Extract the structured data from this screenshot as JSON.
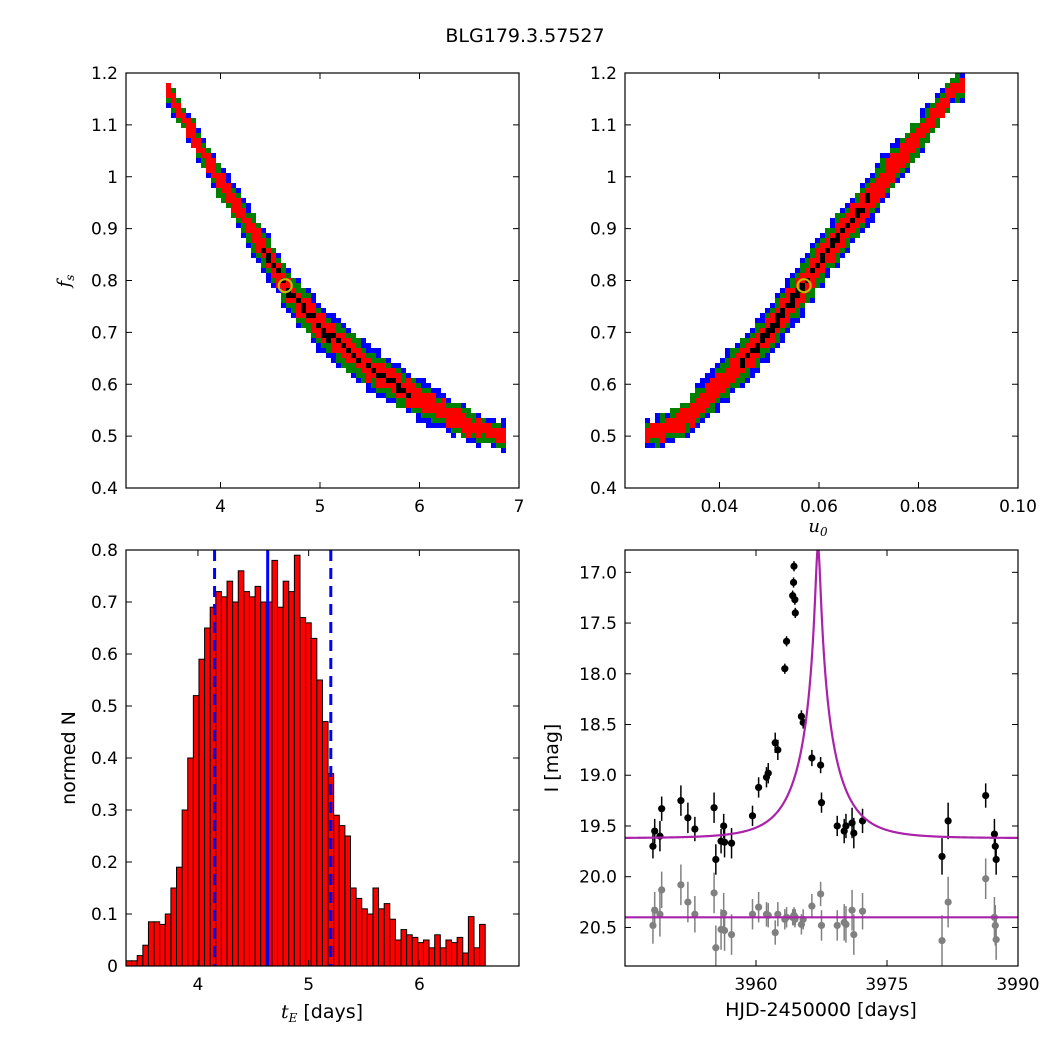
{
  "figure_title": "BLG179.3.57527",
  "chart_data": [
    {
      "type": "scatter",
      "subtype": "density-contour",
      "xlabel": "",
      "ylabel": "f_s",
      "xlim": [
        3.05,
        7.0
      ],
      "ylim": [
        0.4,
        1.2
      ],
      "xticks": [
        4,
        5,
        6,
        7
      ],
      "yticks": [
        0.4,
        0.5,
        0.6,
        0.7,
        0.8,
        0.9,
        1.0,
        1.1,
        1.2
      ],
      "levels": [
        {
          "name": "3-sigma",
          "color": "#0000ff"
        },
        {
          "name": "2-sigma",
          "color": "#008000"
        },
        {
          "name": "1-sigma",
          "color": "#ff0000"
        },
        {
          "name": "best",
          "color": "#000000"
        }
      ],
      "ridge": [
        [
          3.45,
          1.17
        ],
        [
          3.7,
          1.09
        ],
        [
          4.0,
          0.99
        ],
        [
          4.3,
          0.9
        ],
        [
          4.65,
          0.79
        ],
        [
          5.0,
          0.71
        ],
        [
          5.5,
          0.63
        ],
        [
          6.0,
          0.57
        ],
        [
          6.5,
          0.52
        ],
        [
          6.85,
          0.5
        ]
      ],
      "best_fit": {
        "x": 4.65,
        "y": 0.79,
        "color": "#bfbf00"
      }
    },
    {
      "type": "scatter",
      "subtype": "density-contour",
      "xlabel": "u_0",
      "ylabel": "",
      "xlim": [
        0.021,
        0.1
      ],
      "ylim": [
        0.4,
        1.2
      ],
      "xticks": [
        0.04,
        0.06,
        0.08,
        0.1
      ],
      "xtick_labels": [
        "0.04",
        "0.06",
        "0.08",
        "0.10"
      ],
      "yticks": [
        0.4,
        0.5,
        0.6,
        0.7,
        0.8,
        0.9,
        1.0,
        1.1,
        1.2
      ],
      "levels": [
        {
          "name": "3-sigma",
          "color": "#0000ff"
        },
        {
          "name": "2-sigma",
          "color": "#008000"
        },
        {
          "name": "1-sigma",
          "color": "#ff0000"
        },
        {
          "name": "best",
          "color": "#000000"
        }
      ],
      "ridge": [
        [
          0.027,
          0.505
        ],
        [
          0.033,
          0.53
        ],
        [
          0.04,
          0.6
        ],
        [
          0.045,
          0.65
        ],
        [
          0.05,
          0.7
        ],
        [
          0.056,
          0.78
        ],
        [
          0.062,
          0.86
        ],
        [
          0.068,
          0.93
        ],
        [
          0.075,
          1.02
        ],
        [
          0.082,
          1.1
        ],
        [
          0.087,
          1.17
        ]
      ],
      "best_fit": {
        "x": 0.057,
        "y": 0.79,
        "color": "#bfbf00"
      }
    },
    {
      "type": "bar",
      "subtype": "histogram",
      "xlabel": "t_E [days]",
      "ylabel": "normed N",
      "xlim": [
        3.35,
        6.9
      ],
      "ylim": [
        0.0,
        0.8
      ],
      "xticks": [
        4,
        5,
        6
      ],
      "yticks": [
        0.0,
        0.1,
        0.2,
        0.3,
        0.4,
        0.5,
        0.6,
        0.7,
        0.8
      ],
      "bin_start": 3.35,
      "bin_width": 0.0507,
      "values": [
        0.01,
        0.01,
        0.02,
        0.04,
        0.085,
        0.085,
        0.08,
        0.1,
        0.15,
        0.19,
        0.3,
        0.4,
        0.52,
        0.59,
        0.65,
        0.69,
        0.72,
        0.71,
        0.74,
        0.7,
        0.76,
        0.72,
        0.71,
        0.73,
        0.7,
        0.7,
        0.78,
        0.69,
        0.74,
        0.72,
        0.79,
        0.67,
        0.66,
        0.63,
        0.55,
        0.47,
        0.37,
        0.29,
        0.27,
        0.25,
        0.15,
        0.13,
        0.11,
        0.1,
        0.15,
        0.11,
        0.12,
        0.09,
        0.05,
        0.07,
        0.06,
        0.055,
        0.045,
        0.05,
        0.035,
        0.06,
        0.035,
        0.05,
        0.045,
        0.055,
        0.025,
        0.095,
        0.035,
        0.08
      ],
      "bar_color": "#ff0000",
      "vlines": [
        {
          "x": 4.63,
          "style": "solid",
          "color": "#0000ff"
        },
        {
          "x": 4.15,
          "style": "dashed",
          "color": "#0000ff"
        },
        {
          "x": 5.2,
          "style": "dashed",
          "color": "#0000ff"
        }
      ]
    },
    {
      "type": "scatter",
      "subtype": "light-curve",
      "xlabel": "HJD-2450000 [days]",
      "ylabel": "I [mag]",
      "xlim": [
        3945,
        3990
      ],
      "ylim": [
        20.88,
        16.78
      ],
      "y_inverted": true,
      "xticks": [
        3960,
        3975,
        3990
      ],
      "yticks": [
        17.0,
        17.5,
        18.0,
        18.5,
        19.0,
        19.5,
        20.0,
        20.5
      ],
      "ytick_labels": [
        "17.0",
        "17.5",
        "18.0",
        "18.5",
        "19.0",
        "19.5",
        "20.0",
        "20.5"
      ],
      "model": {
        "t0": 3967.1,
        "u0": 0.057,
        "tE": 4.65,
        "fs": 0.79,
        "I_base": 19.62,
        "color": "#aa22aa"
      },
      "baseline_model": {
        "I": 20.4,
        "color": "#aa22aa"
      },
      "series": [
        {
          "color": "#000000",
          "points": [
            [
              3948.2,
              19.7,
              0.12
            ],
            [
              3948.4,
              19.55,
              0.12
            ],
            [
              3949.0,
              19.6,
              0.15
            ],
            [
              3949.2,
              19.33,
              0.12
            ],
            [
              3951.4,
              19.25,
              0.15
            ],
            [
              3952.2,
              19.42,
              0.15
            ],
            [
              3953.0,
              19.53,
              0.12
            ],
            [
              3955.2,
              19.32,
              0.15
            ],
            [
              3955.4,
              19.83,
              0.15
            ],
            [
              3956.0,
              19.65,
              0.12
            ],
            [
              3956.3,
              19.5,
              0.12
            ],
            [
              3956.4,
              19.66,
              0.15
            ],
            [
              3957.2,
              19.67,
              0.15
            ],
            [
              3959.6,
              19.4,
              0.1
            ],
            [
              3960.3,
              19.12,
              0.1
            ],
            [
              3961.2,
              19.02,
              0.1
            ],
            [
              3961.4,
              18.98,
              0.1
            ],
            [
              3962.2,
              18.68,
              0.1
            ],
            [
              3962.5,
              18.75,
              0.1
            ],
            [
              3963.3,
              17.95,
              0.05
            ],
            [
              3963.5,
              17.68,
              0.05
            ],
            [
              3964.2,
              17.23,
              0.05
            ],
            [
              3964.3,
              17.1,
              0.05
            ],
            [
              3964.35,
              16.94,
              0.05
            ],
            [
              3964.45,
              17.27,
              0.05
            ],
            [
              3964.5,
              17.4,
              0.05
            ],
            [
              3965.2,
              18.42,
              0.06
            ],
            [
              3965.4,
              18.48,
              0.06
            ],
            [
              3966.4,
              18.83,
              0.08
            ],
            [
              3967.4,
              18.9,
              0.08
            ],
            [
              3967.5,
              19.27,
              0.1
            ],
            [
              3969.3,
              19.5,
              0.1
            ],
            [
              3970.1,
              19.55,
              0.12
            ],
            [
              3970.3,
              19.5,
              0.12
            ],
            [
              3971.0,
              19.47,
              0.15
            ],
            [
              3971.2,
              19.57,
              0.15
            ],
            [
              3972.2,
              19.45,
              0.12
            ],
            [
              3981.3,
              19.8,
              0.18
            ],
            [
              3982.0,
              19.45,
              0.18
            ],
            [
              3986.3,
              19.2,
              0.12
            ],
            [
              3987.3,
              19.58,
              0.15
            ],
            [
              3987.4,
              19.7,
              0.15
            ],
            [
              3987.5,
              19.83,
              0.15
            ]
          ]
        },
        {
          "color": "#808080",
          "points": [
            [
              3948.2,
              20.48,
              0.18
            ],
            [
              3948.4,
              20.33,
              0.18
            ],
            [
              3949.0,
              20.37,
              0.22
            ],
            [
              3949.2,
              20.13,
              0.18
            ],
            [
              3951.4,
              20.08,
              0.2
            ],
            [
              3952.2,
              20.25,
              0.2
            ],
            [
              3953.0,
              20.37,
              0.18
            ],
            [
              3955.2,
              20.16,
              0.2
            ],
            [
              3955.4,
              20.7,
              0.22
            ],
            [
              3956.0,
              20.52,
              0.2
            ],
            [
              3956.3,
              20.36,
              0.2
            ],
            [
              3956.4,
              20.53,
              0.2
            ],
            [
              3957.2,
              20.57,
              0.2
            ],
            [
              3959.6,
              20.37,
              0.15
            ],
            [
              3960.3,
              20.3,
              0.15
            ],
            [
              3961.2,
              20.37,
              0.12
            ],
            [
              3961.4,
              20.38,
              0.12
            ],
            [
              3962.2,
              20.55,
              0.12
            ],
            [
              3962.5,
              20.37,
              0.12
            ],
            [
              3963.3,
              20.42,
              0.1
            ],
            [
              3963.5,
              20.4,
              0.1
            ],
            [
              3964.2,
              20.4,
              0.08
            ],
            [
              3964.3,
              20.4,
              0.08
            ],
            [
              3964.35,
              20.38,
              0.08
            ],
            [
              3964.45,
              20.42,
              0.08
            ],
            [
              3964.5,
              20.4,
              0.08
            ],
            [
              3965.2,
              20.47,
              0.1
            ],
            [
              3965.4,
              20.42,
              0.1
            ],
            [
              3966.4,
              20.29,
              0.12
            ],
            [
              3967.4,
              20.17,
              0.12
            ],
            [
              3967.5,
              20.48,
              0.15
            ],
            [
              3969.3,
              20.48,
              0.15
            ],
            [
              3970.1,
              20.45,
              0.18
            ],
            [
              3970.3,
              20.47,
              0.18
            ],
            [
              3971.0,
              20.33,
              0.2
            ],
            [
              3971.2,
              20.57,
              0.2
            ],
            [
              3972.2,
              20.34,
              0.18
            ],
            [
              3981.3,
              20.63,
              0.25
            ],
            [
              3982.0,
              20.25,
              0.25
            ],
            [
              3986.3,
              20.02,
              0.2
            ],
            [
              3987.3,
              20.4,
              0.2
            ],
            [
              3987.4,
              20.48,
              0.2
            ],
            [
              3987.5,
              20.62,
              0.2
            ]
          ]
        }
      ]
    }
  ]
}
